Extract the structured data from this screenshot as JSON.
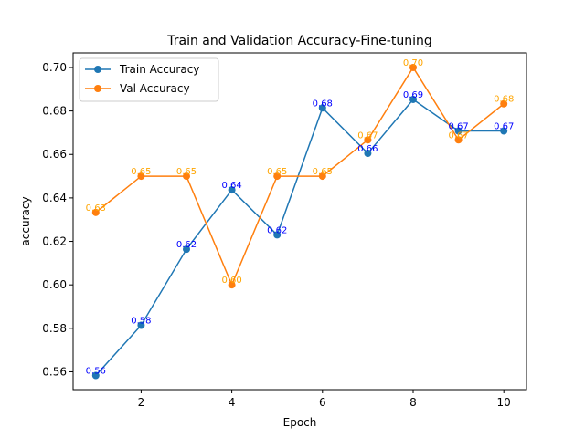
{
  "chart_data": {
    "type": "line",
    "title": "Train and Validation Accuracy-Fine-tuning",
    "xlabel": "Epoch",
    "ylabel": "accuracy",
    "x": [
      1,
      2,
      3,
      4,
      5,
      6,
      7,
      8,
      9,
      10
    ],
    "xlim": [
      0.5,
      10.5
    ],
    "ylim": [
      0.5518,
      0.7067
    ],
    "xticks": [
      2,
      4,
      6,
      8,
      10
    ],
    "yticks": [
      0.56,
      0.58,
      0.6,
      0.62,
      0.64,
      0.66,
      0.68,
      0.7
    ],
    "ytick_labels": [
      "0.56",
      "0.58",
      "0.60",
      "0.62",
      "0.64",
      "0.66",
      "0.68",
      "0.70"
    ],
    "grid": false,
    "legend_position": "top-left",
    "series": [
      {
        "name": "Train Accuracy",
        "color": "#1f77b4",
        "label_color": "#0000ff",
        "values": [
          0.5583,
          0.5814,
          0.6164,
          0.6437,
          0.623,
          0.6814,
          0.6605,
          0.6853,
          0.6708,
          0.6708
        ],
        "data_labels": [
          "0.56",
          "0.58",
          "0.62",
          "0.64",
          "0.62",
          "0.68",
          "0.66",
          "0.69",
          "0.67",
          "0.67"
        ]
      },
      {
        "name": "Val Accuracy",
        "color": "#ff7f0e",
        "label_color": "#ffa500",
        "values": [
          0.6333,
          0.65,
          0.65,
          0.6,
          0.65,
          0.65,
          0.6667,
          0.7,
          0.6667,
          0.6833
        ],
        "data_labels": [
          "0.63",
          "0.65",
          "0.65",
          "0.60",
          "0.65",
          "0.65",
          "0.67",
          "0.70",
          "0.67",
          "0.68"
        ]
      }
    ]
  }
}
